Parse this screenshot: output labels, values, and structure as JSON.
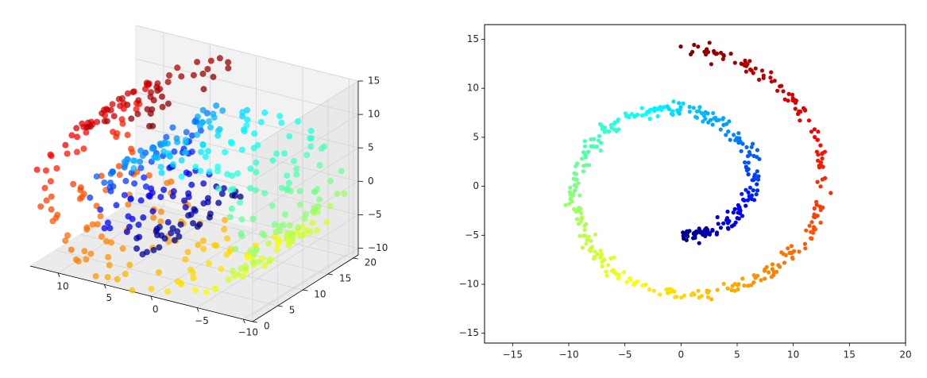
{
  "chart_data": [
    {
      "type": "scatter",
      "projection": "3d",
      "description": "Swiss roll manifold, points colored by roll parameter (jet colormap)",
      "colormap": "jet",
      "xlim": [
        -11,
        13
      ],
      "ylim": [
        0,
        21
      ],
      "zlim": [
        -11,
        15
      ],
      "xticks": [
        -10,
        -5,
        0,
        5,
        10
      ],
      "yticks": [
        0,
        5,
        10,
        15,
        20
      ],
      "zticks": [
        -10,
        -5,
        0,
        5,
        10,
        15
      ],
      "xtick_labels": [
        "−10",
        "−5",
        "0",
        "5",
        "10"
      ],
      "ytick_labels": [
        "0",
        "5",
        "10",
        "15",
        "20"
      ],
      "ztick_labels": [
        "−10",
        "−5",
        "0",
        "5",
        "10",
        "15"
      ],
      "n_points": 500,
      "roll_parameter_range": [
        4.71,
        14.14
      ],
      "grid": true,
      "pane_color": "#f2f2f2"
    },
    {
      "type": "scatter",
      "description": "2D embedding of Swiss roll (x vs z), colored by roll parameter",
      "colormap": "jet",
      "xlim": [
        -17.5,
        20
      ],
      "ylim": [
        -16,
        16.5
      ],
      "xticks": [
        -15,
        -10,
        -5,
        0,
        5,
        10,
        15,
        20
      ],
      "yticks": [
        -15,
        -10,
        -5,
        0,
        5,
        10,
        15
      ],
      "xtick_labels": [
        "−15",
        "−10",
        "−5",
        "0",
        "5",
        "10",
        "15",
        "20"
      ],
      "ytick_labels": [
        "−15",
        "−10",
        "−5",
        "0",
        "5",
        "10",
        "15"
      ],
      "n_points": 500,
      "roll_parameter_range": [
        4.71,
        14.14
      ],
      "grid": false
    }
  ]
}
